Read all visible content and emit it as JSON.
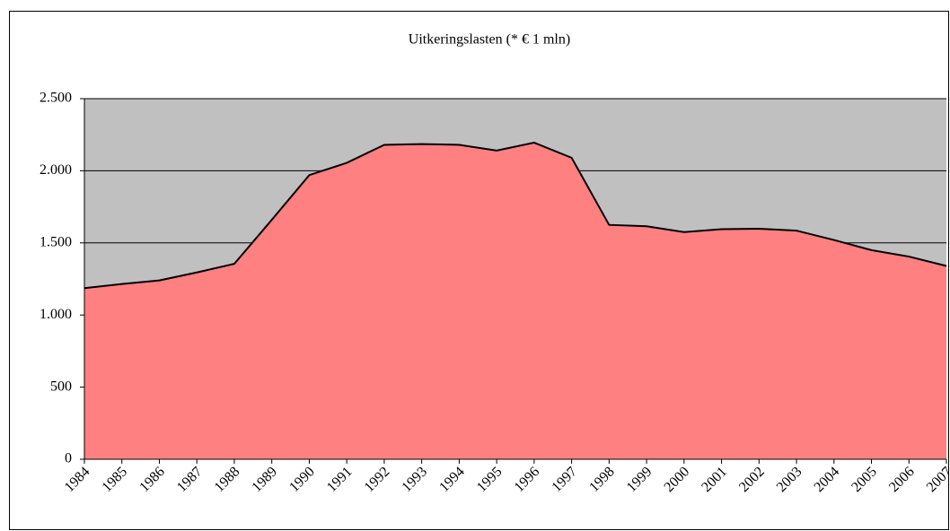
{
  "chart_data": {
    "type": "area",
    "title": "Uitkeringslasten (* € 1 mln)",
    "categories": [
      "1984",
      "1985",
      "1986",
      "1987",
      "1988",
      "1989",
      "1990",
      "1991",
      "1992",
      "1993",
      "1994",
      "1995",
      "1996",
      "1997",
      "1998",
      "1999",
      "2000",
      "2001",
      "2002",
      "2003",
      "2004",
      "2005",
      "2006",
      "2007"
    ],
    "values": [
      1186,
      1215,
      1240,
      1295,
      1355,
      1660,
      1970,
      2055,
      2180,
      2185,
      2180,
      2140,
      2195,
      2090,
      1625,
      1615,
      1575,
      1595,
      1598,
      1585,
      1520,
      1450,
      1405,
      1340
    ],
    "color": "#ff8080",
    "plot_background": "#c0c0c0",
    "ylim": [
      0,
      2500
    ],
    "yticks": [
      0,
      500,
      {
        "value": 1000,
        "label": "1.000"
      },
      {
        "value": 1500,
        "label": "1.500"
      },
      {
        "value": 2000,
        "label": "2.000"
      },
      {
        "value": 2500,
        "label": "2.500"
      }
    ],
    "grid": true
  }
}
